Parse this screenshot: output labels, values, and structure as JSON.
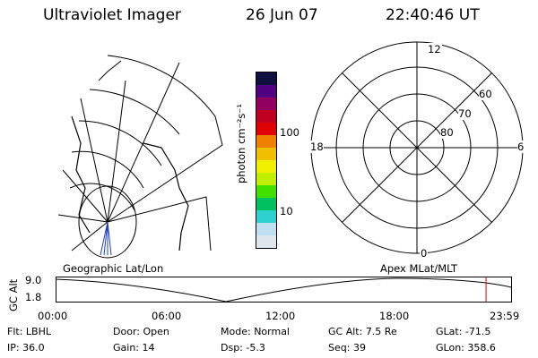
{
  "header": {
    "title": "Ultraviolet Imager",
    "date": "26 Jun 07",
    "time": "22:40:46 UT"
  },
  "geo_map": {
    "label": "Geographic Lat/Lon"
  },
  "color_bar": {
    "unit_label": "photon cm⁻²s⁻¹",
    "ticks": [
      "100",
      "10"
    ],
    "colors": [
      "#dfe6ee",
      "#bfe0f0",
      "#2ed0d0",
      "#00c060",
      "#40e000",
      "#c0f000",
      "#f0f000",
      "#f0c000",
      "#f08000",
      "#e00000",
      "#c00020",
      "#900060",
      "#500080",
      "#101040"
    ]
  },
  "polar_plot": {
    "label": "Apex MLat/MLT",
    "mlt_labels": {
      "top": "12",
      "left": "18",
      "right": "6",
      "bottom": "0"
    },
    "lat_labels": [
      "60",
      "70",
      "80"
    ]
  },
  "timeline": {
    "axis_label": "GC Alt",
    "y_ticks": [
      "9.0",
      "1.8"
    ],
    "x_ticks": [
      "00:00",
      "06:00",
      "12:00",
      "18:00",
      "23:59"
    ],
    "current_marker_hours": 22.68
  },
  "status": {
    "row1": [
      {
        "label": "Flt:",
        "value": "LBHL"
      },
      {
        "label": "Door:",
        "value": "Open"
      },
      {
        "label": "Mode:",
        "value": "Normal"
      },
      {
        "label": "GC Alt:",
        "value": "7.5 Re"
      },
      {
        "label": "GLat:",
        "value": "-71.5"
      }
    ],
    "row2": [
      {
        "label": "IP:",
        "value": "36.0"
      },
      {
        "label": "Gain:",
        "value": "14"
      },
      {
        "label": "Dsp:",
        "value": "-5.3"
      },
      {
        "label": "Seq:",
        "value": "39"
      },
      {
        "label": "GLon:",
        "value": "358.6"
      }
    ]
  }
}
